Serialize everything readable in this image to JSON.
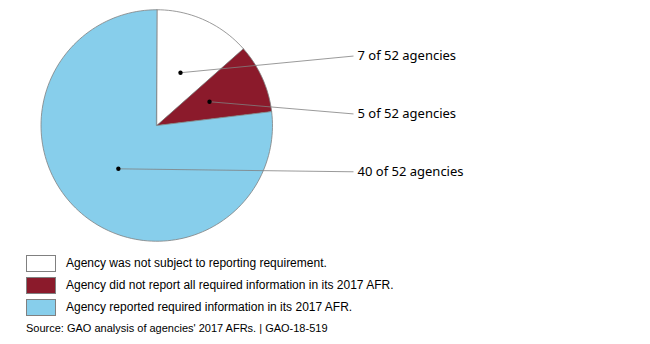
{
  "chart_data": {
    "type": "pie",
    "categories": [
      "Agency was not subject to reporting requirement.",
      "Agency did not report all required information in its 2017 AFR.",
      "Agency reported required information in its 2017 AFR."
    ],
    "values": [
      7,
      5,
      40
    ],
    "colors": [
      "#ffffff",
      "#8b1a2b",
      "#87ceeb"
    ],
    "data_labels": true,
    "value_labels": [
      "7 of 52 agencies",
      "5 of 52 agencies",
      "40 of 52 agencies"
    ],
    "legend": "bottom left",
    "caption": "Source: GAO analysis of agencies' 2017 AFRs.  |  GAO-18-519"
  }
}
